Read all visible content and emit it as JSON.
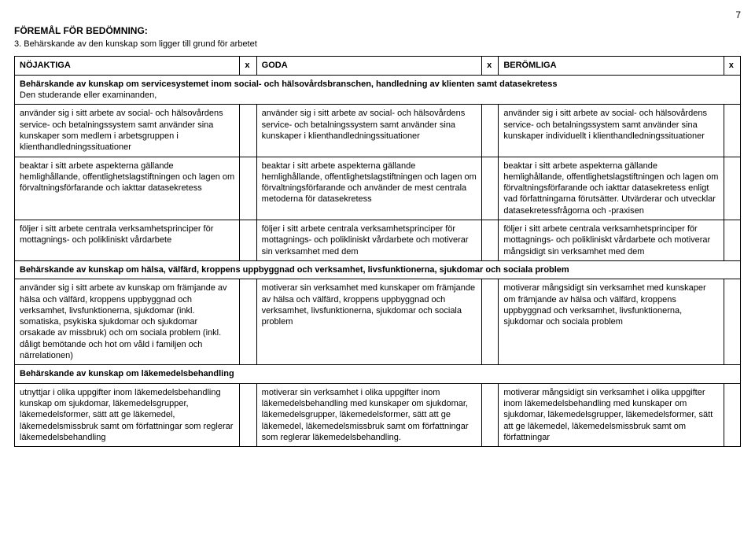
{
  "page_number": "7",
  "section_title": "FÖREMÅL FÖR BEDÖMNING:",
  "subtitle": "3.  Behärskande av den kunskap som ligger till grund för arbetet",
  "headers": {
    "col1": "NÖJAKTIGA",
    "col1x": "x",
    "col2": "GODA",
    "col2x": "x",
    "col3": "BERÖMLIGA",
    "col3x": "x"
  },
  "intro_row": {
    "line1_bold": "Behärskande av kunskap om servicesystemet inom social- och hälsovårdsbranschen, handledning av klienten samt datasekretess",
    "line2": "Den studerande eller examinanden,"
  },
  "rows": [
    {
      "c1": "använder sig i sitt arbete av social- och hälsovårdens service- och betalningssystem samt använder sina kunskaper som medlem i arbetsgruppen i klienthandledningssituationer",
      "c2": "använder sig i sitt arbete av social- och hälsovårdens service- och betalningssystem samt använder sina kunskaper i klienthandledningssituationer",
      "c3": "använder sig i sitt arbete av social- och hälsovårdens service- och betalningssystem samt använder sina kunskaper individuellt i klienthandledningssituationer"
    },
    {
      "c1": "beaktar i sitt arbete aspekterna gällande hemlighållande, offentlighetslagstiftningen och lagen om förvaltningsförfarande och iakttar datasekretess",
      "c2": "beaktar i sitt arbete aspekterna gällande hemlighållande, offentlighetslagstiftningen och lagen om förvaltningsförfarande och använder de mest centrala metoderna för datasekretess",
      "c3": "beaktar i sitt arbete aspekterna gällande hemlighållande, offentlighetslagstiftningen och lagen om förvaltningsförfarande och iakttar datasekretess enligt vad författningarna förutsätter. Utvärderar och utvecklar datasekretessfrågorna och -praxisen"
    },
    {
      "c1": "följer i sitt arbete centrala verksamhetsprinciper för mottagnings- och polikliniskt vårdarbete",
      "c2": "följer i sitt arbete centrala verksamhetsprinciper för mottagnings- och polikliniskt vårdarbete och motiverar sin verksamhet med dem",
      "c3": "följer i sitt arbete centrala verksamhetsprinciper för mottagnings- och polikliniskt vårdarbete och motiverar mångsidigt sin verksamhet med dem"
    }
  ],
  "section2_title": "Behärskande av kunskap om hälsa, välfärd, kroppens uppbyggnad och verksamhet, livsfunktionerna, sjukdomar och sociala problem",
  "rows2": [
    {
      "c1": "använder sig i sitt arbete av kunskap om främjande av hälsa och välfärd, kroppens uppbyggnad och verksamhet, livsfunktionerna, sjukdomar (inkl. somatiska, psykiska sjukdomar och sjukdomar orsakade av missbruk) och om sociala problem (inkl. dåligt bemötande och hot om våld i familjen och närrelationen)",
      "c2": "motiverar sin verksamhet med kunskaper om främjande av hälsa och välfärd, kroppens uppbyggnad och verksamhet, livsfunktionerna, sjukdomar och sociala problem",
      "c3": "motiverar mångsidigt sin verksamhet med kunskaper om främjande av hälsa och välfärd, kroppens uppbyggnad och verksamhet, livsfunktionerna, sjukdomar och sociala problem"
    }
  ],
  "section3_title": "Behärskande av kunskap om läkemedelsbehandling",
  "rows3": [
    {
      "c1": "utnyttjar i olika uppgifter inom läkemedelsbehandling kunskap om sjukdomar, läkemedelsgrupper, läkemedelsformer, sätt att ge läkemedel, läkemedelsmissbruk samt om författningar som reglerar läkemedelsbehandling",
      "c2": "motiverar sin verksamhet i olika uppgifter inom läkemedelsbehandling med kunskaper om sjukdomar, läkemedelsgrupper, läkemedelsformer, sätt att ge läkemedel, läkemedelsmissbruk samt om författningar som reglerar läkemedelsbehandling.",
      "c3": "motiverar mångsidigt sin verksamhet i olika uppgifter inom läkemedelsbehandling med kunskaper om sjukdomar, läkemedelsgrupper, läkemedelsformer, sätt att ge läkemedel, läkemedelsmissbruk samt om författningar"
    }
  ]
}
